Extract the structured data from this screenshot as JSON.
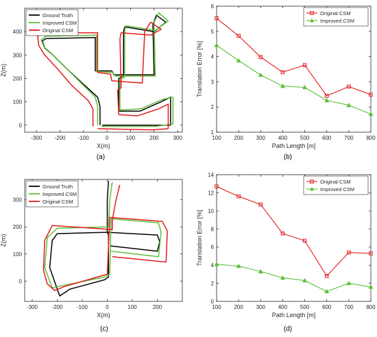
{
  "colors": {
    "ground_truth": "#000000",
    "improved": "#5cbf3a",
    "original": "#e31a1c",
    "axis": "#262626"
  },
  "chart_data": [
    {
      "id": "a",
      "caption": "(a)",
      "type": "line",
      "xlabel": "X(m)",
      "ylabel": "Z(m)",
      "xlim": [
        -350,
        320
      ],
      "ylim": [
        -30,
        500
      ],
      "xticks": [
        "-300",
        "-200",
        "-100",
        "0",
        "100",
        "200",
        "300"
      ],
      "yticks": [
        "0",
        "100",
        "200",
        "300",
        "400"
      ],
      "legend_position": "top-left",
      "series": [
        {
          "name": "Ground Truth",
          "color": "#000000",
          "points": [
            [
              -30,
              0
            ],
            [
              -30,
              80
            ],
            [
              -40,
              120
            ],
            [
              -100,
              175
            ],
            [
              -170,
              240
            ],
            [
              -230,
              300
            ],
            [
              -265,
              330
            ],
            [
              -275,
              360
            ],
            [
              -260,
              370
            ],
            [
              -50,
              375
            ],
            [
              -50,
              235
            ],
            [
              -50,
              232
            ],
            [
              20,
              232
            ],
            [
              30,
              215
            ],
            [
              200,
              215
            ],
            [
              195,
              430
            ],
            [
              210,
              470
            ],
            [
              250,
              440
            ],
            [
              200,
              400
            ],
            [
              75,
              420
            ],
            [
              70,
              400
            ],
            [
              70,
              210
            ],
            [
              50,
              200
            ],
            [
              50,
              60
            ],
            [
              140,
              60
            ],
            [
              230,
              100
            ],
            [
              270,
              120
            ],
            [
              270,
              0
            ],
            [
              200,
              0
            ],
            [
              -20,
              0
            ]
          ]
        },
        {
          "name": "Improved CSM",
          "color": "#5cbf3a",
          "points": [
            [
              -40,
              0
            ],
            [
              -40,
              80
            ],
            [
              -50,
              120
            ],
            [
              -110,
              180
            ],
            [
              -175,
              245
            ],
            [
              -235,
              305
            ],
            [
              -268,
              335
            ],
            [
              -280,
              365
            ],
            [
              -260,
              380
            ],
            [
              -45,
              385
            ],
            [
              -45,
              230
            ],
            [
              25,
              225
            ],
            [
              35,
              210
            ],
            [
              205,
              210
            ],
            [
              200,
              440
            ],
            [
              220,
              480
            ],
            [
              260,
              445
            ],
            [
              205,
              405
            ],
            [
              80,
              425
            ],
            [
              75,
              405
            ],
            [
              75,
              205
            ],
            [
              55,
              195
            ],
            [
              55,
              65
            ],
            [
              145,
              70
            ],
            [
              235,
              110
            ],
            [
              280,
              120
            ],
            [
              280,
              5
            ],
            [
              205,
              -5
            ],
            [
              -25,
              -5
            ]
          ]
        },
        {
          "name": "Original CSM",
          "color": "#e31a1c",
          "points": [
            [
              -60,
              -5
            ],
            [
              -60,
              70
            ],
            [
              -80,
              105
            ],
            [
              -150,
              170
            ],
            [
              -210,
              240
            ],
            [
              -265,
              300
            ],
            [
              -290,
              340
            ],
            [
              -295,
              380
            ],
            [
              -270,
              395
            ],
            [
              -40,
              395
            ],
            [
              -40,
              225
            ],
            [
              15,
              218
            ],
            [
              20,
              190
            ],
            [
              150,
              180
            ],
            [
              160,
              400
            ],
            [
              185,
              440
            ],
            [
              230,
              410
            ],
            [
              185,
              385
            ],
            [
              60,
              395
            ],
            [
              55,
              370
            ],
            [
              60,
              160
            ],
            [
              45,
              150
            ],
            [
              50,
              45
            ],
            [
              130,
              40
            ],
            [
              220,
              70
            ],
            [
              260,
              90
            ],
            [
              260,
              -15
            ],
            [
              190,
              -20
            ],
            [
              -40,
              -15
            ]
          ]
        }
      ]
    },
    {
      "id": "b",
      "caption": "(b)",
      "type": "line",
      "xlabel": "Path Length [m]",
      "ylabel": "Translation Error [%]",
      "x": [
        100,
        200,
        300,
        400,
        500,
        600,
        700,
        800
      ],
      "xlim": [
        100,
        800
      ],
      "ylim": [
        1,
        6
      ],
      "xticks": [
        "100",
        "200",
        "300",
        "400",
        "500",
        "600",
        "700",
        "800"
      ],
      "yticks": [
        "1",
        "2",
        "3",
        "4",
        "5",
        "6"
      ],
      "legend_position": "top-right",
      "series": [
        {
          "name": "Original CSM",
          "color": "#e31a1c",
          "marker": "square",
          "values": [
            5.52,
            4.82,
            3.98,
            3.38,
            3.66,
            2.44,
            2.81,
            2.49
          ]
        },
        {
          "name": "Improved CSM",
          "color": "#5cbf3a",
          "marker": "triangle",
          "values": [
            4.45,
            3.84,
            3.27,
            2.83,
            2.78,
            2.26,
            2.07,
            1.72
          ]
        }
      ]
    },
    {
      "id": "c",
      "caption": "(c)",
      "type": "line",
      "xlabel": "X(m)",
      "ylabel": "Z(m)",
      "xlim": [
        -330,
        300
      ],
      "ylim": [
        -75,
        375
      ],
      "xticks": [
        "-300",
        "-200",
        "-100",
        "0",
        "100",
        "200"
      ],
      "yticks": [
        "0",
        "100",
        "200",
        "300"
      ],
      "legend_position": "top-left",
      "series": [
        {
          "name": "Ground Truth",
          "color": "#000000",
          "points": [
            [
              5,
              370
            ],
            [
              0,
              300
            ],
            [
              0,
              180
            ],
            [
              -200,
              175
            ],
            [
              -220,
              150
            ],
            [
              -230,
              50
            ],
            [
              -190,
              -55
            ],
            [
              -150,
              -30
            ],
            [
              -10,
              5
            ],
            [
              5,
              15
            ],
            [
              5,
              170
            ],
            [
              0,
              180
            ],
            [
              200,
              170
            ],
            [
              210,
              145
            ],
            [
              200,
              110
            ],
            [
              10,
              130
            ]
          ]
        },
        {
          "name": "Improved CSM",
          "color": "#5cbf3a",
          "points": [
            [
              20,
              365
            ],
            [
              10,
              300
            ],
            [
              5,
              200
            ],
            [
              -200,
              195
            ],
            [
              -240,
              160
            ],
            [
              -250,
              50
            ],
            [
              -220,
              -25
            ],
            [
              -170,
              -15
            ],
            [
              -10,
              15
            ],
            [
              10,
              25
            ],
            [
              15,
              230
            ],
            [
              205,
              215
            ],
            [
              215,
              180
            ],
            [
              205,
              90
            ],
            [
              15,
              110
            ]
          ]
        },
        {
          "name": "Original CSM",
          "color": "#e31a1c",
          "points": [
            [
              50,
              355
            ],
            [
              35,
              300
            ],
            [
              20,
              225
            ],
            [
              20,
              190
            ],
            [
              -220,
              205
            ],
            [
              -250,
              150
            ],
            [
              -255,
              40
            ],
            [
              -240,
              -10
            ],
            [
              -210,
              -35
            ],
            [
              -170,
              -20
            ],
            [
              -20,
              20
            ],
            [
              0,
              25
            ],
            [
              10,
              235
            ],
            [
              220,
              220
            ],
            [
              240,
              185
            ],
            [
              235,
              70
            ],
            [
              20,
              90
            ]
          ]
        }
      ]
    },
    {
      "id": "d",
      "caption": "(d)",
      "type": "line",
      "xlabel": "Path Length [m]",
      "ylabel": "Translation Error [%]",
      "x": [
        100,
        200,
        300,
        400,
        500,
        600,
        700,
        800
      ],
      "xlim": [
        100,
        800
      ],
      "ylim": [
        0,
        14
      ],
      "xticks": [
        "100",
        "200",
        "300",
        "400",
        "500",
        "600",
        "700",
        "800"
      ],
      "yticks": [
        "0",
        "2",
        "4",
        "6",
        "8",
        "10",
        "12",
        "14"
      ],
      "legend_position": "top-right",
      "series": [
        {
          "name": "Original CSM",
          "color": "#e31a1c",
          "marker": "square",
          "values": [
            12.7,
            11.6,
            10.7,
            7.5,
            6.7,
            2.8,
            5.4,
            5.3
          ]
        },
        {
          "name": "Improved CSM",
          "color": "#5cbf3a",
          "marker": "triangle",
          "values": [
            4.1,
            3.9,
            3.3,
            2.6,
            2.3,
            1.1,
            2.0,
            1.6
          ]
        }
      ]
    }
  ]
}
